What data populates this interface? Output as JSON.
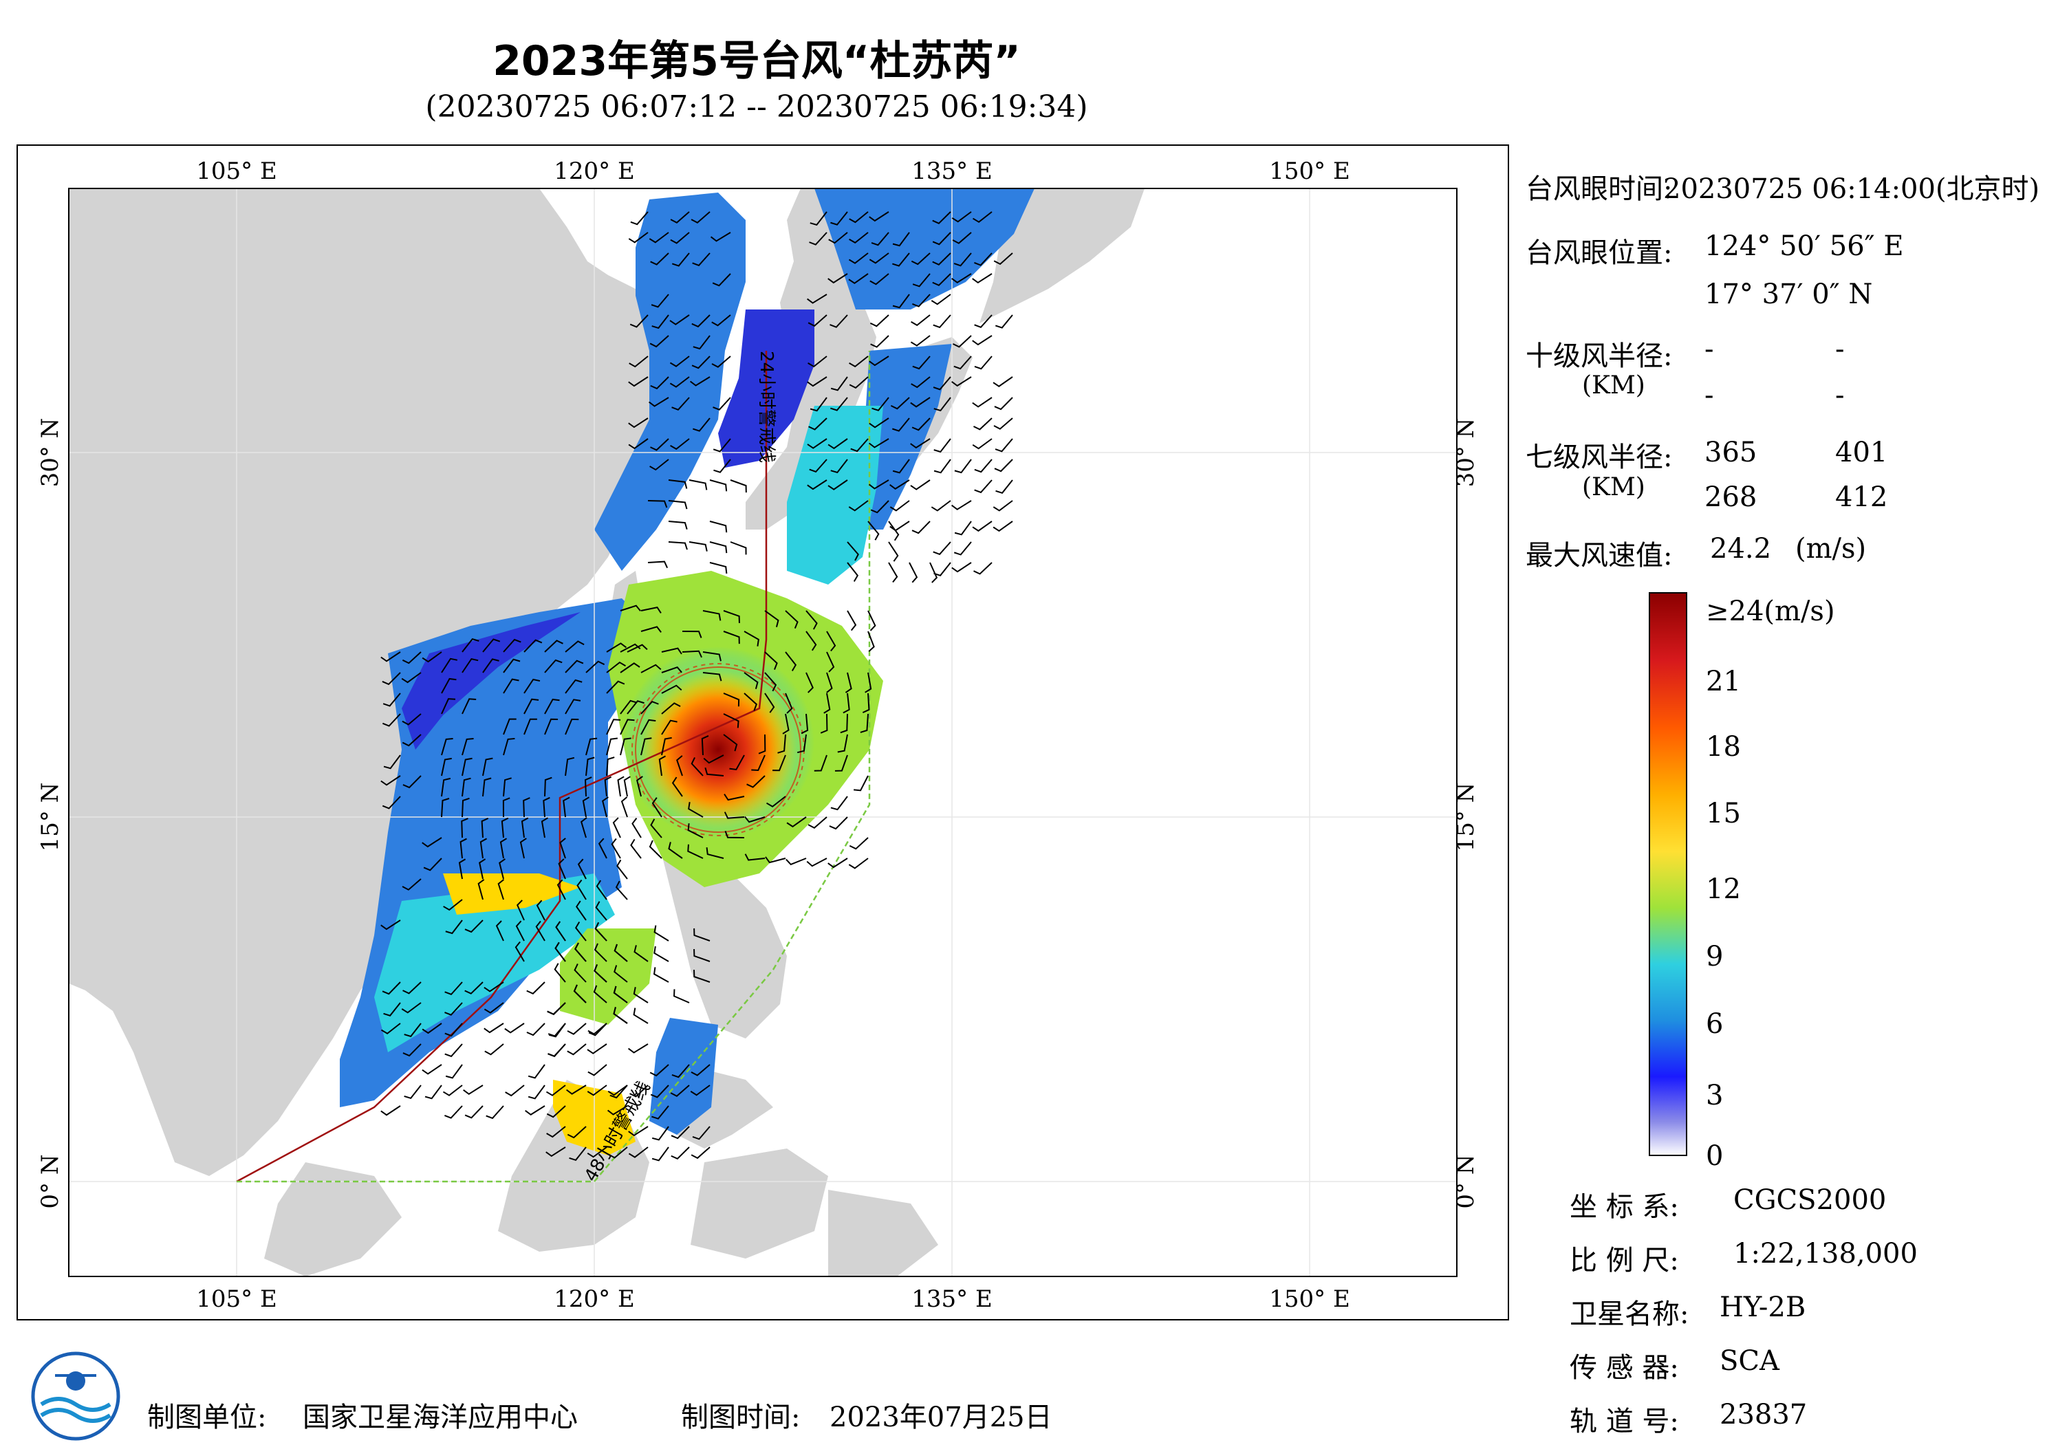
{
  "title": "2023年第5号台风“杜苏芮”",
  "subtitle": "(20230725 06:07:12 -- 20230725 06:19:34)",
  "map": {
    "lon_ticks": [
      "105° E",
      "120° E",
      "135° E",
      "150° E"
    ],
    "lat_ticks": [
      "30° N",
      "15° N",
      "0° N"
    ],
    "line_labels": [
      "24小时警戒线",
      "48小时警戒线"
    ],
    "colors": {
      "land": "#d3d3d3",
      "sea": "#ffffff",
      "warn24": "#a01010",
      "warn48": "#7ac943"
    }
  },
  "info": {
    "eye_time_label": "台风眼时间:",
    "eye_time_value": "20230725 06:14:00(北京时)",
    "eye_pos_label": "台风眼位置:",
    "eye_lon": "124° 50′ 56″ E",
    "eye_lat": "17° 37′ 0″ N",
    "r10_label": "十级风半径:",
    "r10_unit": "(KM)",
    "r10": [
      "-",
      "-",
      "-",
      "-"
    ],
    "r7_label": "七级风半径:",
    "r7_unit": "(KM)",
    "r7": [
      "365",
      "401",
      "268",
      "412"
    ],
    "max_label": "最大风速值:",
    "max_value": "24.2",
    "max_unit": "(m/s)"
  },
  "colorbar": {
    "labels": [
      "≥24(m/s)",
      "21",
      "18",
      "15",
      "12",
      "9",
      "6",
      "3",
      "0"
    ],
    "colors": [
      "#8b0000",
      "#d7191c",
      "#ff6600",
      "#ffd700",
      "#9fe23a",
      "#2fd0e0",
      "#1f6fe0",
      "#1a1aff",
      "#ffffff"
    ]
  },
  "meta": {
    "crs_label": "坐 标 系:",
    "crs": "CGCS2000",
    "scale_label": "比 例 尺:",
    "scale": "1:22,138,000",
    "sat_label": "卫星名称:",
    "sat": "HY-2B",
    "sensor_label": "传 感 器:",
    "sensor": "SCA",
    "orbit_label": "轨 道 号:",
    "orbit": "23837"
  },
  "footer": {
    "org_label": "制图单位:",
    "org": "国家卫星海洋应用中心",
    "date_label": "制图时间:",
    "date": "2023年07月25日"
  }
}
